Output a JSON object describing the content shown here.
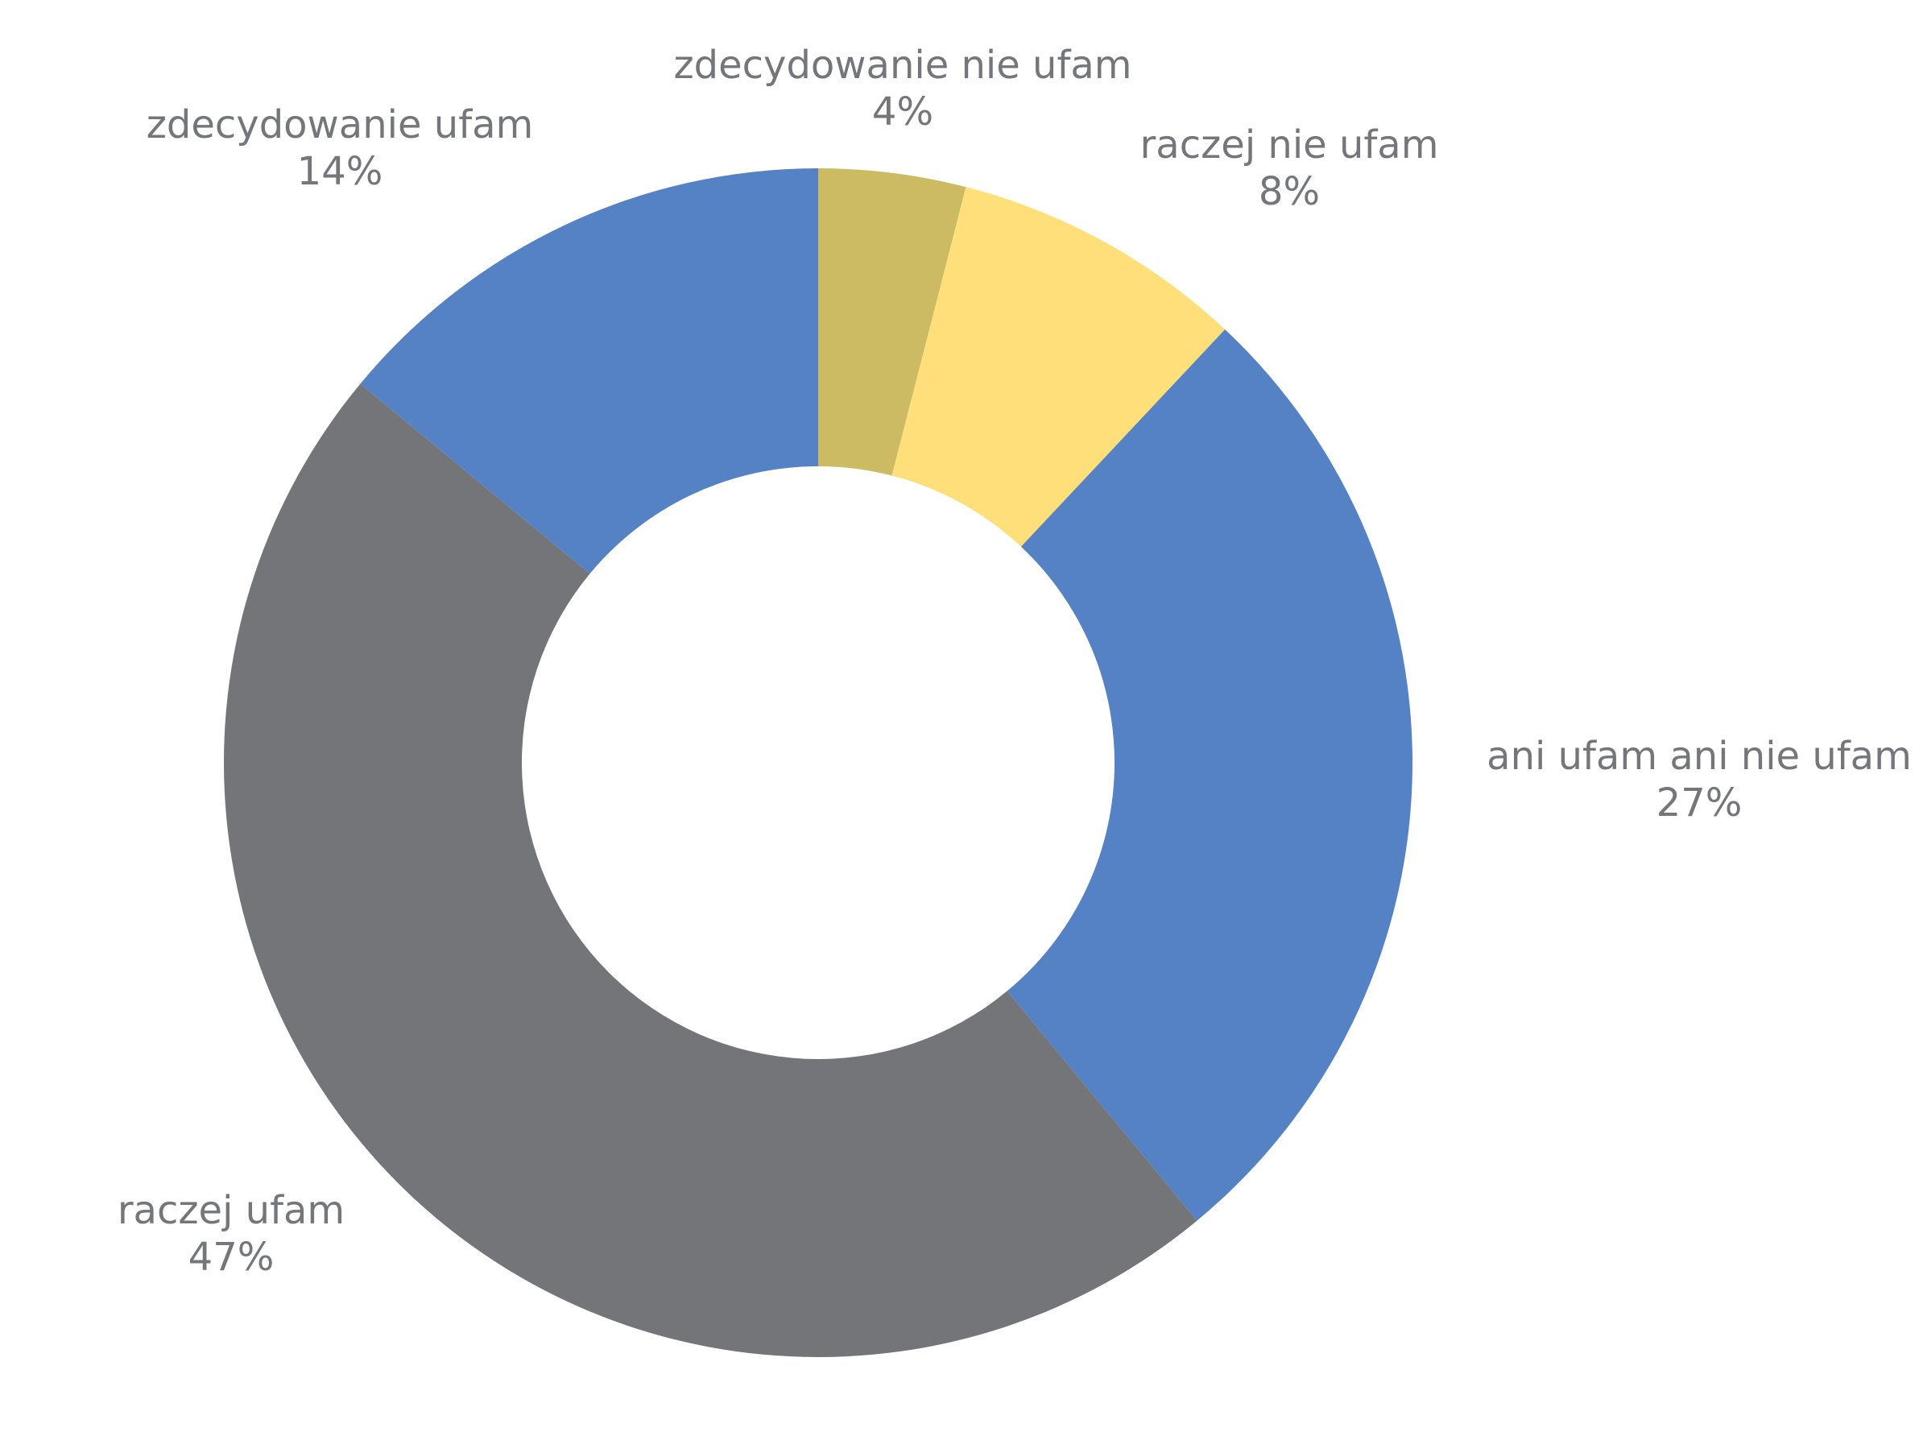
{
  "chart_data": {
    "type": "pie",
    "variant": "donut",
    "title": "",
    "legend": "none",
    "start_angle_deg": 0,
    "direction": "clockwise",
    "slices": [
      {
        "label": "zdecydowanie nie ufam",
        "value": 4,
        "value_label": "4%",
        "color": "#cdbb63"
      },
      {
        "label": "raczej nie ufam",
        "value": 8,
        "value_label": "8%",
        "color": "#fedf7a"
      },
      {
        "label": "ani ufam ani nie ufam",
        "value": 27,
        "value_label": "27%",
        "color": "#5582c4"
      },
      {
        "label": "raczej ufam",
        "value": 47,
        "value_label": "47%",
        "color": "#737579"
      },
      {
        "label": "zdecydowanie ufam",
        "value": 14,
        "value_label": "14%",
        "color": "#5582c4"
      }
    ],
    "label_color": "#75767b"
  }
}
